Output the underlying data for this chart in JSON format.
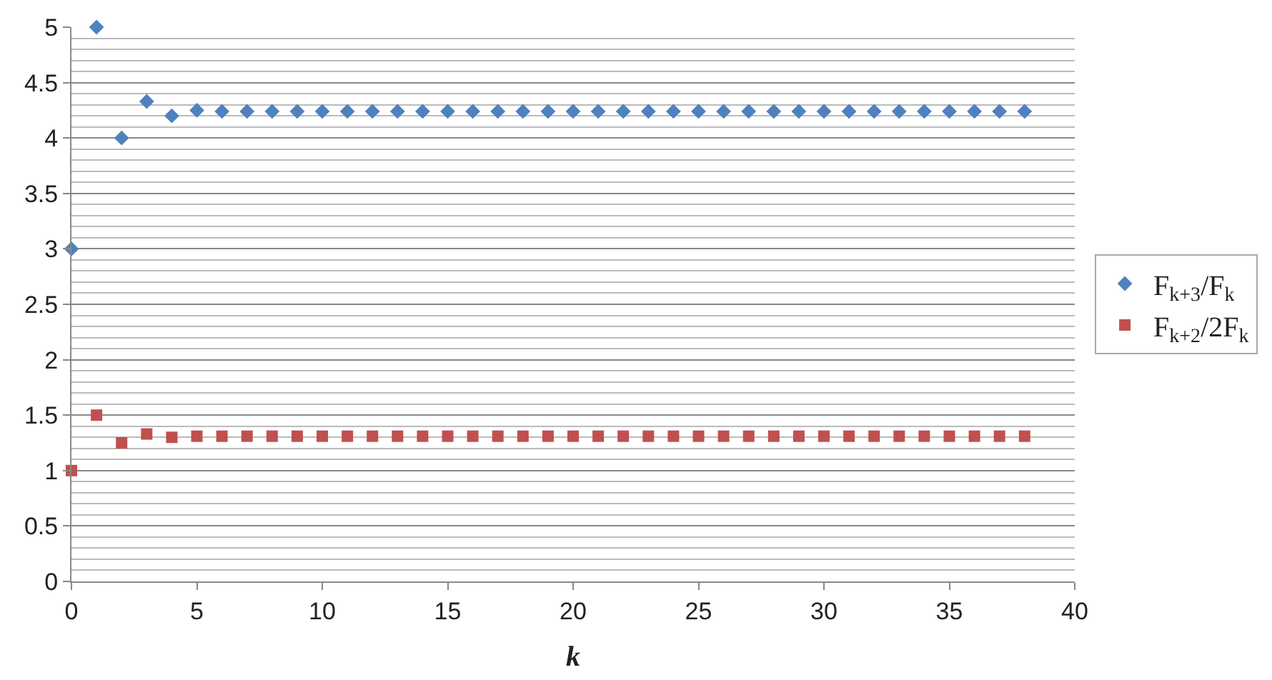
{
  "chart_data": {
    "type": "scatter",
    "xlabel": "k",
    "x": [
      0,
      1,
      2,
      3,
      4,
      5,
      6,
      7,
      8,
      9,
      10,
      11,
      12,
      13,
      14,
      15,
      16,
      17,
      18,
      19,
      20,
      21,
      22,
      23,
      24,
      25,
      26,
      27,
      28,
      29,
      30,
      31,
      32,
      33,
      34,
      35,
      36,
      37,
      38
    ],
    "series": [
      {
        "name": "F$_{k+3}$/F$_{k}$",
        "color": "#4f81bd",
        "marker": "diamond",
        "values": [
          3,
          5,
          4,
          4.33,
          4.2,
          4.25,
          4.24,
          4.24,
          4.24,
          4.24,
          4.24,
          4.24,
          4.24,
          4.24,
          4.24,
          4.24,
          4.24,
          4.24,
          4.24,
          4.24,
          4.24,
          4.24,
          4.24,
          4.24,
          4.24,
          4.24,
          4.24,
          4.24,
          4.24,
          4.24,
          4.24,
          4.24,
          4.24,
          4.24,
          4.24,
          4.24,
          4.24,
          4.24,
          4.24
        ]
      },
      {
        "name": "F$_{k+2}$/2F$_{k}$",
        "color": "#c0504d",
        "marker": "square",
        "values": [
          1,
          1.5,
          1.25,
          1.33,
          1.3,
          1.31,
          1.31,
          1.31,
          1.31,
          1.31,
          1.31,
          1.31,
          1.31,
          1.31,
          1.31,
          1.31,
          1.31,
          1.31,
          1.31,
          1.31,
          1.31,
          1.31,
          1.31,
          1.31,
          1.31,
          1.31,
          1.31,
          1.31,
          1.31,
          1.31,
          1.31,
          1.31,
          1.31,
          1.31,
          1.31,
          1.31,
          1.31,
          1.31,
          1.31
        ]
      }
    ],
    "xlim": [
      0,
      40
    ],
    "xticks": [
      0,
      5,
      10,
      15,
      20,
      25,
      30,
      35,
      40
    ],
    "ylim": [
      0,
      5
    ],
    "yticks": [
      0,
      0.5,
      1,
      1.5,
      2,
      2.5,
      3,
      3.5,
      4,
      4.5,
      5
    ],
    "grid": "y",
    "legend": "right"
  }
}
